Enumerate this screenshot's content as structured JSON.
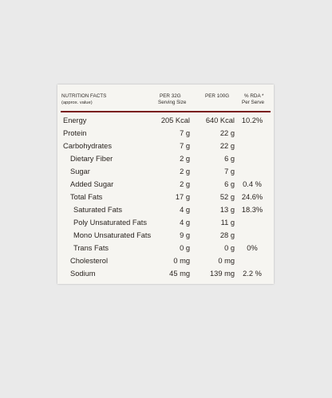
{
  "header": {
    "title": "NUTRITION FACTS",
    "subtitle": "(approx. value)",
    "col1_line1": "PER 32G",
    "col1_line2": "Serving Size",
    "col2_line1": "PER 100G",
    "col3_line1": "% RDA *",
    "col3_line2": "Per Serve"
  },
  "rows": [
    {
      "name": "Energy",
      "per_serving": "205 Kcal",
      "per_100g": "640 Kcal",
      "rda": "10.2%"
    },
    {
      "name": "Protein",
      "per_serving": "7 g",
      "per_100g": "22 g",
      "rda": ""
    },
    {
      "name": "Carbohydrates",
      "per_serving": "7 g",
      "per_100g": "22 g",
      "rda": ""
    },
    {
      "name": "Dietary Fiber",
      "per_serving": "2 g",
      "per_100g": "6 g",
      "rda": ""
    },
    {
      "name": "Sugar",
      "per_serving": "2 g",
      "per_100g": "7 g",
      "rda": ""
    },
    {
      "name": "Added Sugar",
      "per_serving": "2 g",
      "per_100g": "6 g",
      "rda": "0.4 %"
    },
    {
      "name": "Total Fats",
      "per_serving": "17 g",
      "per_100g": "52 g",
      "rda": "24.6%"
    },
    {
      "name": "Saturated Fats",
      "per_serving": "4 g",
      "per_100g": "13 g",
      "rda": "18.3%"
    },
    {
      "name": "Poly Unsaturated Fats",
      "per_serving": "4 g",
      "per_100g": "11 g",
      "rda": ""
    },
    {
      "name": "Mono Unsaturated Fats",
      "per_serving": "9 g",
      "per_100g": "28 g",
      "rda": ""
    },
    {
      "name": "Trans Fats",
      "per_serving": "0 g",
      "per_100g": "0 g",
      "rda": "0%"
    },
    {
      "name": "Cholesterol",
      "per_serving": "0 mg",
      "per_100g": "0 mg",
      "rda": ""
    },
    {
      "name": "Sodium",
      "per_serving": "45 mg",
      "per_100g": "139 mg",
      "rda": "2.2 %"
    }
  ]
}
